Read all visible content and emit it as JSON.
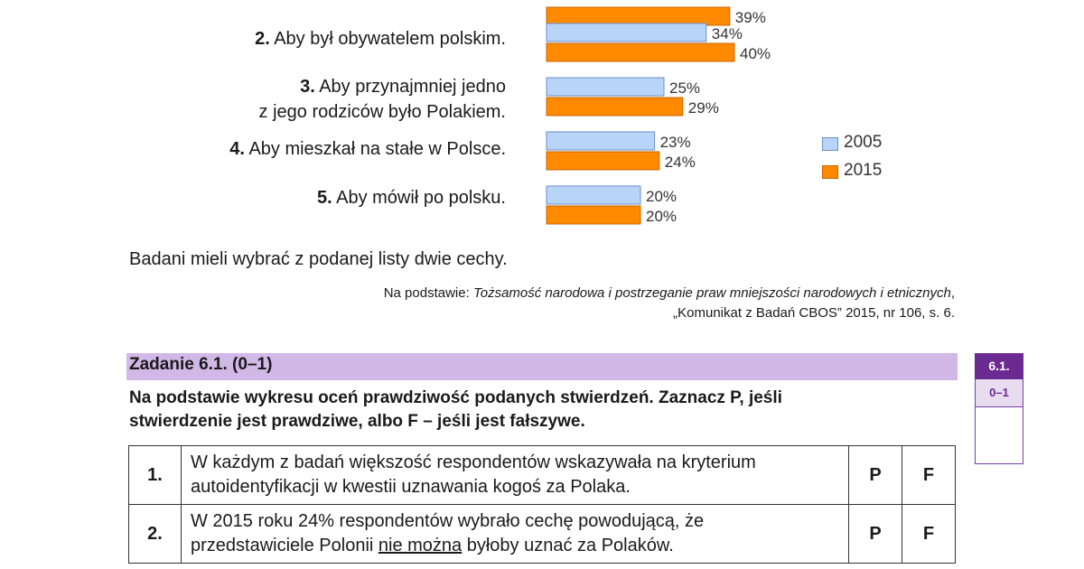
{
  "chart_data": {
    "type": "bar",
    "orientation": "horizontal",
    "categories": [
      {
        "num": "",
        "lines": [
          "",
          ""
        ],
        "value_2005": null,
        "value_2015": 39
      },
      {
        "num": "2.",
        "lines": [
          "Aby był obywatelem polskim."
        ],
        "value_2005": 34,
        "value_2015": 40
      },
      {
        "num": "3.",
        "lines": [
          "Aby przynajmniej jedno",
          "z jego rodziców było Polakiem."
        ],
        "value_2005": 25,
        "value_2015": 29
      },
      {
        "num": "4.",
        "lines": [
          "Aby mieszkał na stałe w Polsce."
        ],
        "value_2005": 23,
        "value_2015": 24
      },
      {
        "num": "5.",
        "lines": [
          "Aby mówił po polsku."
        ],
        "value_2005": 20,
        "value_2015": 20
      }
    ],
    "labels_2005": [
      "",
      "34%",
      "25%",
      "23%",
      "20%"
    ],
    "labels_2015": [
      "39%",
      "40%",
      "29%",
      "24%",
      "20%"
    ],
    "series": [
      {
        "name": "2005",
        "color": "#b8d4f8",
        "stroke": "#6a8fc8"
      },
      {
        "name": "2015",
        "color": "#ff8a00",
        "stroke": "#c86400"
      }
    ],
    "legend_position": "right"
  },
  "note": "Badani mieli wybrać z podanej listy dwie cechy.",
  "source": {
    "prefix": "Na podstawie: ",
    "title": "Tożsamość narodowa i postrzeganie praw mniejszości narodowych i etnicznych",
    "suffix": ",",
    "line2": "„Komunikat z Badań CBOS” 2015, nr 106, s. 6."
  },
  "task": {
    "title": "Zadanie 6.1. (0–1)",
    "instruction_line1": "Na podstawie wykresu oceń prawdziwość podanych stwierdzeń. Zaznacz P, jeśli",
    "instruction_line2": "stwierdzenie jest prawdziwe, albo F – jeśli jest fałszywe."
  },
  "statements": [
    {
      "num": "1.",
      "line1": "W każdym z badań większość respondentów wskazywała na kryterium",
      "line2": "autoidentyfikacji w kwestii uznawania kogoś za Polaka.",
      "p": "P",
      "f": "F"
    },
    {
      "num": "2.",
      "line1": "W 2015 roku 24% respondentów wybrało cechę powodującą, że",
      "line2_pre": "przedstawiciele Polonii ",
      "line2_u": "nie można",
      "line2_post": " byłoby uznać za Polaków.",
      "p": "P",
      "f": "F"
    }
  ],
  "score_box": {
    "label": "6.1.",
    "points": "0–1"
  }
}
